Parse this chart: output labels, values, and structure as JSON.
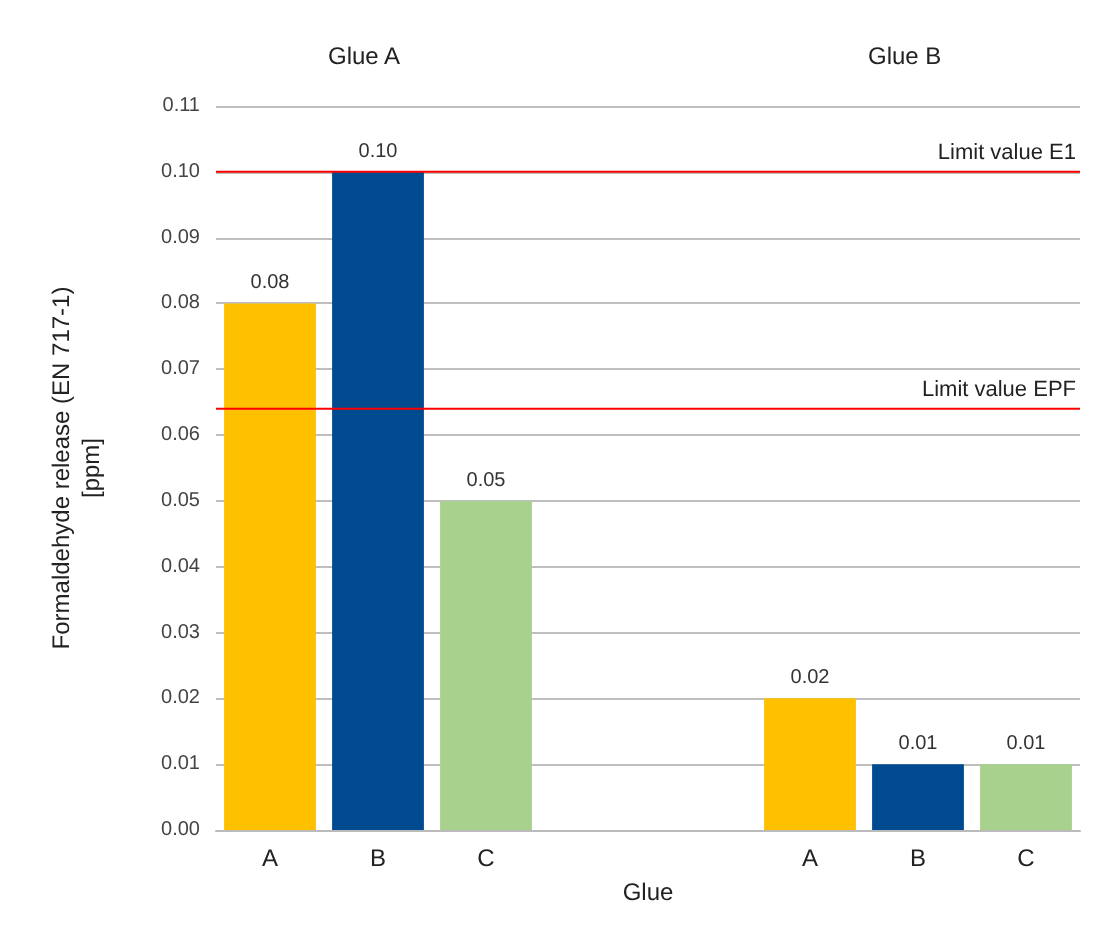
{
  "chart_data": {
    "type": "bar",
    "xlabel": "Glue",
    "ylabel": "Formaldehyde release (EN 717-1)\n[ppm]",
    "categories": [
      "A",
      "B",
      "C",
      null,
      null,
      "A",
      "B",
      "C"
    ],
    "values": [
      0.08,
      0.1,
      0.05,
      null,
      null,
      0.02,
      0.01,
      0.01
    ],
    "colors": [
      "#ffc000",
      "#004a8f",
      "#a9d18e",
      null,
      null,
      "#ffc000",
      "#004a8f",
      "#a9d18e"
    ],
    "value_labels": [
      "0.08",
      "0.10",
      "0.05",
      null,
      null,
      "0.02",
      "0.01",
      "0.01"
    ],
    "ylim": [
      0,
      0.11
    ],
    "yticks": [
      {
        "value": 0,
        "label": "0.00"
      },
      {
        "value": 0.01,
        "label": "0.01"
      },
      {
        "value": 0.02,
        "label": "0.02"
      },
      {
        "value": 0.03,
        "label": "0.03"
      },
      {
        "value": 0.04,
        "label": "0.04"
      },
      {
        "value": 0.05,
        "label": "0.05"
      },
      {
        "value": 0.06,
        "label": "0.06"
      },
      {
        "value": 0.07,
        "label": "0.07"
      },
      {
        "value": 0.08,
        "label": "0.08"
      },
      {
        "value": 0.09,
        "label": "0.09"
      },
      {
        "value": 0.1,
        "label": "0.10"
      },
      {
        "value": 0.11,
        "label": "0.11"
      }
    ],
    "grid": "y",
    "ref_lines": [
      {
        "axis": "y",
        "value": 0.1,
        "label": "Limit value E1",
        "color": "#ff0000"
      },
      {
        "axis": "y",
        "value": 0.064,
        "label": "Limit value EPF",
        "color": "#ff0000"
      }
    ],
    "annotations": [
      "Glue A",
      "Glue B"
    ]
  }
}
